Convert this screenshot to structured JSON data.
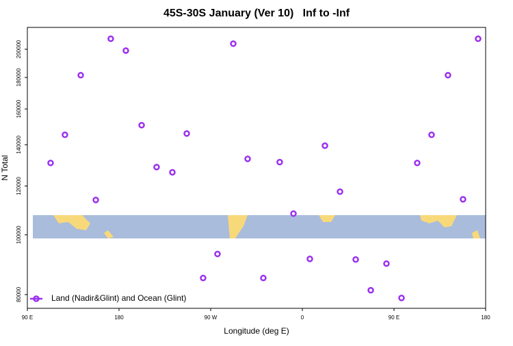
{
  "chart_data": {
    "type": "scatter",
    "title": "45S-30S January (Ver 10)   Inf to -Inf",
    "x_label": "Longitude (deg E)",
    "y_label": "N Total",
    "xlim": [
      90,
      540
    ],
    "xticks": [
      {
        "value": 90,
        "label": "90 E"
      },
      180,
      {
        "value": 270,
        "label": "90 W"
      },
      {
        "value": 360,
        "label": "0"
      },
      {
        "value": 450,
        "label": "90 E"
      },
      {
        "value": 540,
        "label": "180"
      }
    ],
    "ylim": [
      76000,
      217000
    ],
    "yscale": "log",
    "yticks": [
      80000,
      100000,
      120000,
      140000,
      160000,
      180000,
      200000
    ],
    "legend_position": "lower left",
    "series": [
      {
        "name": "Land (Nadir&Glint) and Ocean (Glint)",
        "color": "#9b30f0",
        "x": [
          112.8,
          126.9,
          142.4,
          157.2,
          171.9,
          186.7,
          202.2,
          216.9,
          232.4,
          246.5,
          262.6,
          276.7,
          292.2,
          306.3,
          321.7,
          337.8,
          351.3,
          367.4,
          382.2,
          397.0,
          412.4,
          427.2,
          442.6,
          457.4,
          472.8,
          486.9,
          503.0,
          517.8,
          532.6
        ],
        "values": [
          130800,
          145300,
          181500,
          113900,
          208000,
          199000,
          150600,
          128800,
          126300,
          146000,
          85100,
          93100,
          204200,
          132800,
          85100,
          131200,
          108250,
          91400,
          139500,
          117500,
          91200,
          81300,
          89800,
          79000,
          130800,
          145300,
          181500,
          114200,
          208000
        ]
      }
    ]
  }
}
